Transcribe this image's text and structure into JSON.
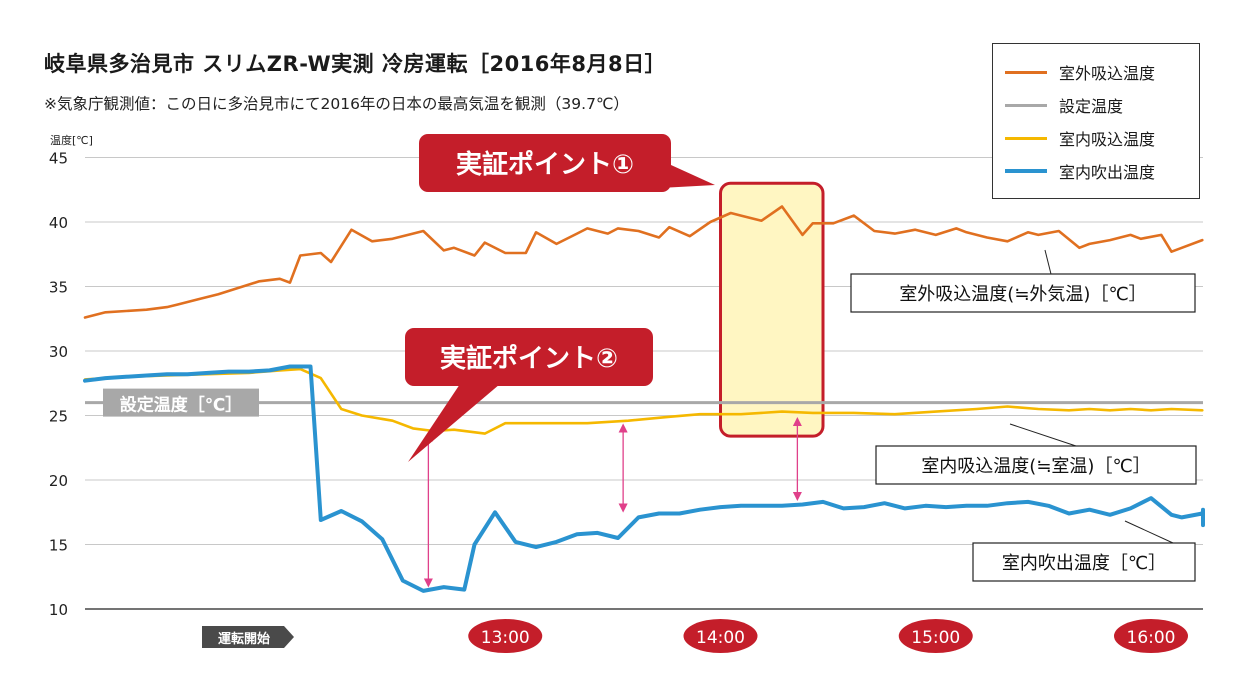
{
  "chart_data": {
    "type": "line",
    "title": "岐阜県多治見市 スリムZR-W実測 冷房運転［2016年8月8日］",
    "subtitle": "※気象庁観測値：この日に多治見市にて2016年の日本の最高気温を観測（39.7℃）",
    "ylabel": "温度[℃]",
    "ylim": [
      10,
      45
    ],
    "yticks": [
      10,
      15,
      20,
      25,
      30,
      35,
      40,
      45
    ],
    "xlim": [
      0,
      109
    ],
    "x_ticks": [
      {
        "x": 20,
        "label": "運転開始",
        "style": "arrow"
      },
      {
        "x": 41,
        "label": "13:00",
        "style": "badge"
      },
      {
        "x": 62,
        "label": "14:00",
        "style": "badge"
      },
      {
        "x": 83,
        "label": "15:00",
        "style": "badge"
      },
      {
        "x": 104,
        "label": "16:00",
        "style": "badge"
      }
    ],
    "grid": "horizontal",
    "legend_position": "top-right",
    "setpoint": {
      "value": 26,
      "label": "設定温度［℃］",
      "color": "#a8a8a8"
    },
    "series": [
      {
        "name": "室外吸込温度",
        "color": "#e07020",
        "callout": "室外吸込温度(≒外気温)［℃］",
        "values": [
          [
            0,
            32.6
          ],
          [
            2,
            33.0
          ],
          [
            4,
            33.1
          ],
          [
            6,
            33.2
          ],
          [
            8,
            33.4
          ],
          [
            9,
            33.6
          ],
          [
            11,
            34.0
          ],
          [
            13,
            34.4
          ],
          [
            15,
            34.9
          ],
          [
            17,
            35.4
          ],
          [
            19,
            35.6
          ],
          [
            20,
            35.3
          ],
          [
            21,
            37.4
          ],
          [
            23,
            37.6
          ],
          [
            24,
            36.9
          ],
          [
            26,
            39.4
          ],
          [
            28,
            38.5
          ],
          [
            30,
            38.7
          ],
          [
            32,
            39.1
          ],
          [
            33,
            39.3
          ],
          [
            35,
            37.8
          ],
          [
            36,
            38.0
          ],
          [
            38,
            37.4
          ],
          [
            39,
            38.4
          ],
          [
            41,
            37.6
          ],
          [
            43,
            37.6
          ],
          [
            44,
            39.2
          ],
          [
            46,
            38.3
          ],
          [
            48,
            39.1
          ],
          [
            49,
            39.5
          ],
          [
            51,
            39.1
          ],
          [
            52,
            39.5
          ],
          [
            54,
            39.3
          ],
          [
            56,
            38.8
          ],
          [
            57,
            39.6
          ],
          [
            59,
            38.9
          ],
          [
            61,
            40.0
          ],
          [
            63,
            40.7
          ],
          [
            64,
            40.5
          ],
          [
            66,
            40.1
          ],
          [
            68,
            41.2
          ],
          [
            70,
            39.0
          ],
          [
            71,
            39.9
          ],
          [
            73,
            39.9
          ],
          [
            75,
            40.5
          ],
          [
            77,
            39.3
          ],
          [
            79,
            39.1
          ],
          [
            81,
            39.4
          ],
          [
            83,
            39.0
          ],
          [
            85,
            39.5
          ],
          [
            86,
            39.2
          ],
          [
            88,
            38.8
          ],
          [
            90,
            38.5
          ],
          [
            92,
            39.2
          ],
          [
            93,
            39.0
          ],
          [
            95,
            39.3
          ],
          [
            97,
            38.0
          ],
          [
            98,
            38.3
          ],
          [
            100,
            38.6
          ],
          [
            102,
            39.0
          ],
          [
            103,
            38.7
          ],
          [
            105,
            39.0
          ],
          [
            106,
            37.7
          ],
          [
            107,
            38.0
          ],
          [
            109,
            38.6
          ]
        ]
      },
      {
        "name": "設定温度",
        "color": "#a8a8a8",
        "values": [
          [
            0,
            26.0
          ],
          [
            109,
            26.0
          ]
        ]
      },
      {
        "name": "室内吸込温度",
        "color": "#f5b800",
        "callout": "室内吸込温度(≒室温)［℃］",
        "values": [
          [
            0,
            27.8
          ],
          [
            4,
            28.0
          ],
          [
            8,
            28.1
          ],
          [
            12,
            28.2
          ],
          [
            16,
            28.3
          ],
          [
            19,
            28.5
          ],
          [
            21,
            28.6
          ],
          [
            23,
            27.9
          ],
          [
            25,
            25.5
          ],
          [
            27,
            25.0
          ],
          [
            30,
            24.6
          ],
          [
            32,
            24.0
          ],
          [
            34,
            23.8
          ],
          [
            36,
            23.9
          ],
          [
            39,
            23.6
          ],
          [
            41,
            24.4
          ],
          [
            45,
            24.4
          ],
          [
            49,
            24.4
          ],
          [
            53,
            24.6
          ],
          [
            57,
            24.9
          ],
          [
            60,
            25.1
          ],
          [
            64,
            25.1
          ],
          [
            68,
            25.3
          ],
          [
            71,
            25.2
          ],
          [
            75,
            25.2
          ],
          [
            79,
            25.1
          ],
          [
            83,
            25.3
          ],
          [
            87,
            25.5
          ],
          [
            90,
            25.7
          ],
          [
            93,
            25.5
          ],
          [
            96,
            25.4
          ],
          [
            98,
            25.5
          ],
          [
            100,
            25.4
          ],
          [
            102,
            25.5
          ],
          [
            104,
            25.4
          ],
          [
            106,
            25.5
          ],
          [
            109,
            25.4
          ]
        ]
      },
      {
        "name": "室内吹出温度",
        "color": "#2a93d0",
        "callout": "室内吹出温度［℃］",
        "values": [
          [
            0,
            27.7
          ],
          [
            2,
            27.9
          ],
          [
            4,
            28.0
          ],
          [
            6,
            28.1
          ],
          [
            8,
            28.2
          ],
          [
            10,
            28.2
          ],
          [
            12,
            28.3
          ],
          [
            14,
            28.4
          ],
          [
            16,
            28.4
          ],
          [
            18,
            28.5
          ],
          [
            20,
            28.8
          ],
          [
            22,
            28.8
          ],
          [
            23,
            16.9
          ],
          [
            25,
            17.6
          ],
          [
            27,
            16.8
          ],
          [
            29,
            15.4
          ],
          [
            31,
            12.2
          ],
          [
            33,
            11.4
          ],
          [
            35,
            11.7
          ],
          [
            37,
            11.5
          ],
          [
            38,
            15.0
          ],
          [
            40,
            17.5
          ],
          [
            42,
            15.2
          ],
          [
            44,
            14.8
          ],
          [
            46,
            15.2
          ],
          [
            48,
            15.8
          ],
          [
            50,
            15.9
          ],
          [
            52,
            15.5
          ],
          [
            54,
            17.1
          ],
          [
            56,
            17.4
          ],
          [
            58,
            17.4
          ],
          [
            60,
            17.7
          ],
          [
            62,
            17.9
          ],
          [
            64,
            18.0
          ],
          [
            66,
            18.0
          ],
          [
            68,
            18.0
          ],
          [
            70,
            18.1
          ],
          [
            72,
            18.3
          ],
          [
            74,
            17.8
          ],
          [
            76,
            17.9
          ],
          [
            78,
            18.2
          ],
          [
            80,
            17.8
          ],
          [
            82,
            18.0
          ],
          [
            84,
            17.9
          ],
          [
            86,
            18.0
          ],
          [
            88,
            18.0
          ],
          [
            90,
            18.2
          ],
          [
            92,
            18.3
          ],
          [
            94,
            18.0
          ],
          [
            96,
            17.4
          ],
          [
            98,
            17.7
          ],
          [
            100,
            17.3
          ],
          [
            102,
            17.8
          ],
          [
            104,
            18.6
          ],
          [
            106,
            17.3
          ],
          [
            107,
            17.1
          ],
          [
            109,
            17.4
          ],
          [
            111,
            17.6
          ],
          [
            113,
            16.8
          ],
          [
            115,
            16.5
          ],
          [
            116,
            17.7
          ],
          [
            118,
            17.3
          ]
        ]
      }
    ],
    "annotations": [
      {
        "label": "実証ポイント①",
        "highlight": {
          "x": [
            62,
            72
          ],
          "y": [
            23.4,
            43.0
          ]
        }
      },
      {
        "label": "実証ポイント②"
      }
    ],
    "gap_markers": [
      {
        "x": 33.5,
        "from": 23.7,
        "to": 11.5
      },
      {
        "x": 52.5,
        "from": 24.4,
        "to": 17.3
      },
      {
        "x": 69.5,
        "from": 24.9,
        "to": 18.2
      }
    ]
  }
}
